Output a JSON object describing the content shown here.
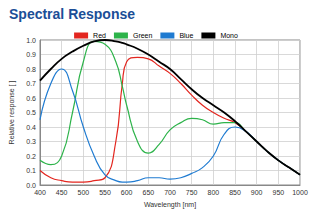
{
  "chart_data": {
    "type": "line",
    "title": "Spectral Response",
    "x_label": "Wavelength [nm]",
    "y_label": "Relative response [ ]",
    "x": [
      400,
      425,
      450,
      475,
      500,
      525,
      550,
      575,
      590,
      600,
      625,
      650,
      675,
      700,
      725,
      750,
      775,
      800,
      825,
      850,
      875,
      900,
      925,
      950,
      975,
      1000
    ],
    "series": [
      {
        "name": "Red",
        "color": "#e3261f",
        "values": [
          0.1,
          0.05,
          0.03,
          0.02,
          0.02,
          0.03,
          0.05,
          0.3,
          0.7,
          0.85,
          0.88,
          0.87,
          0.82,
          0.77,
          0.7,
          0.62,
          0.55,
          0.5,
          0.46,
          0.43,
          0.37,
          0.3,
          0.23,
          0.17,
          0.12,
          0.07
        ]
      },
      {
        "name": "Green",
        "color": "#2db34a",
        "values": [
          0.17,
          0.14,
          0.2,
          0.5,
          0.85,
          0.99,
          0.97,
          0.85,
          0.68,
          0.55,
          0.3,
          0.22,
          0.28,
          0.38,
          0.43,
          0.46,
          0.45,
          0.42,
          0.43,
          0.43,
          0.37,
          0.3,
          0.23,
          0.17,
          0.12,
          0.07
        ]
      },
      {
        "name": "Blue",
        "color": "#1f7bd1",
        "values": [
          0.45,
          0.7,
          0.8,
          0.65,
          0.4,
          0.2,
          0.07,
          0.03,
          0.02,
          0.02,
          0.03,
          0.05,
          0.05,
          0.04,
          0.05,
          0.08,
          0.12,
          0.2,
          0.35,
          0.4,
          0.37,
          0.3,
          0.23,
          0.17,
          0.12,
          0.07
        ]
      },
      {
        "name": "Mono",
        "color": "#000000",
        "values": [
          0.72,
          0.8,
          0.87,
          0.92,
          0.96,
          0.99,
          1.0,
          0.99,
          0.98,
          0.97,
          0.94,
          0.9,
          0.85,
          0.8,
          0.73,
          0.66,
          0.6,
          0.55,
          0.5,
          0.44,
          0.37,
          0.3,
          0.23,
          0.17,
          0.12,
          0.07
        ]
      }
    ],
    "xlim": [
      400,
      1000
    ],
    "xticks": [
      400,
      450,
      500,
      550,
      600,
      650,
      700,
      750,
      800,
      850,
      900,
      950,
      1000
    ],
    "ylim": [
      0,
      1
    ],
    "yticks": [
      {
        "value": 0,
        "label": "0.0"
      },
      0.1,
      0.2,
      0.3,
      0.4,
      0.5,
      0.6,
      0.7,
      0.8,
      0.9,
      {
        "value": 1,
        "label": "1.0"
      }
    ],
    "grid": true,
    "legend": "top"
  }
}
